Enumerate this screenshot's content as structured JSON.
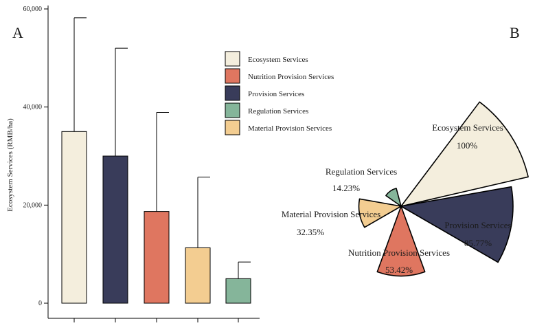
{
  "panels": {
    "left": "A",
    "right": "B"
  },
  "legend": [
    {
      "label": "Ecosystem Services",
      "color": "#f4eedd"
    },
    {
      "label": "Nutrition Provision Services",
      "color": "#df7660"
    },
    {
      "label": "Provision Services",
      "color": "#393c5a"
    },
    {
      "label": "Regulation Services",
      "color": "#85b59a"
    },
    {
      "label": "Material Provision Services",
      "color": "#f3cd91"
    }
  ],
  "chart_data": [
    {
      "type": "bar",
      "title": "",
      "xlabel": "",
      "ylabel": "Ecosystem Services (RMB/ha)",
      "ylim": [
        0,
        60000
      ],
      "yticks": [
        0,
        20000,
        40000,
        60000
      ],
      "ytick_labels": [
        "0",
        "20,000",
        "40,000",
        "60,000"
      ],
      "categories": [
        "Ecosystem Services",
        "Provision Services",
        "Nutrition Provision Services",
        "Material Provision Services",
        "Regulation Services"
      ],
      "values": [
        35000,
        30000,
        18700,
        11300,
        5000
      ],
      "error_upper": [
        58200,
        52000,
        38900,
        25700,
        8400
      ],
      "colors": [
        "#f4eedd",
        "#393c5a",
        "#df7660",
        "#f3cd91",
        "#85b59a"
      ]
    },
    {
      "type": "pie",
      "subtype": "rose",
      "categories": [
        "Ecosystem Services",
        "Provision Services",
        "Nutrition Provision Services",
        "Material Provision Services",
        "Regulation Services"
      ],
      "values": [
        100,
        85.77,
        53.42,
        32.35,
        14.23
      ],
      "value_labels": [
        "100%",
        "85.77%",
        "53.42%",
        "32.35%",
        "14.23%"
      ],
      "colors": [
        "#f4eedd",
        "#393c5a",
        "#df7660",
        "#f3cd91",
        "#85b59a"
      ]
    }
  ]
}
